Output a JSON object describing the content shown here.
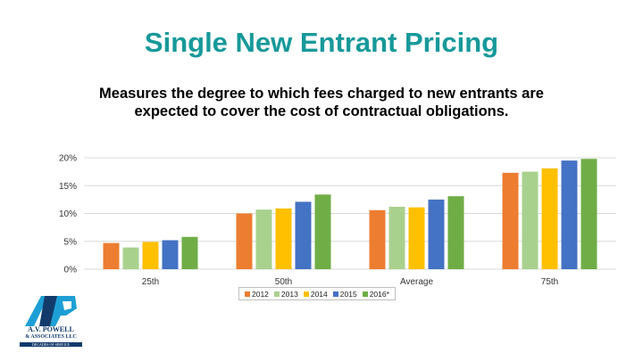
{
  "slide": {
    "title": "Single New Entrant Pricing",
    "subtitle_line1": "Measures the degree to which fees charged to new entrants are",
    "subtitle_line2": "expected to cover the cost of contractual obligations."
  },
  "logo": {
    "line1": "A.V. POWELL",
    "line2": "& ASSOCIATES LLC",
    "line3": "DECADES OF SERVICE"
  },
  "colors": {
    "title": "#17999a",
    "series": [
      "#ed7d31",
      "#a9d18e",
      "#ffc000",
      "#4472c4",
      "#70ad47"
    ],
    "grid": "#d9d9d9"
  },
  "chart_data": {
    "type": "bar",
    "title": "",
    "xlabel": "",
    "ylabel": "",
    "ylim": [
      0,
      20
    ],
    "yticks": [
      "0%",
      "5%",
      "10%",
      "15%",
      "20%"
    ],
    "categories": [
      "25th",
      "50th",
      "Average",
      "75th"
    ],
    "series": [
      {
        "name": "2012",
        "values": [
          4.7,
          10.0,
          10.6,
          17.3
        ]
      },
      {
        "name": "2013",
        "values": [
          3.9,
          10.7,
          11.2,
          17.5
        ]
      },
      {
        "name": "2014",
        "values": [
          4.9,
          10.9,
          11.1,
          18.1
        ]
      },
      {
        "name": "2015",
        "values": [
          5.2,
          12.1,
          12.5,
          19.5
        ]
      },
      {
        "name": "2016*",
        "values": [
          5.8,
          13.4,
          13.1,
          19.8
        ]
      }
    ],
    "grid": true,
    "legend_position": "bottom"
  }
}
